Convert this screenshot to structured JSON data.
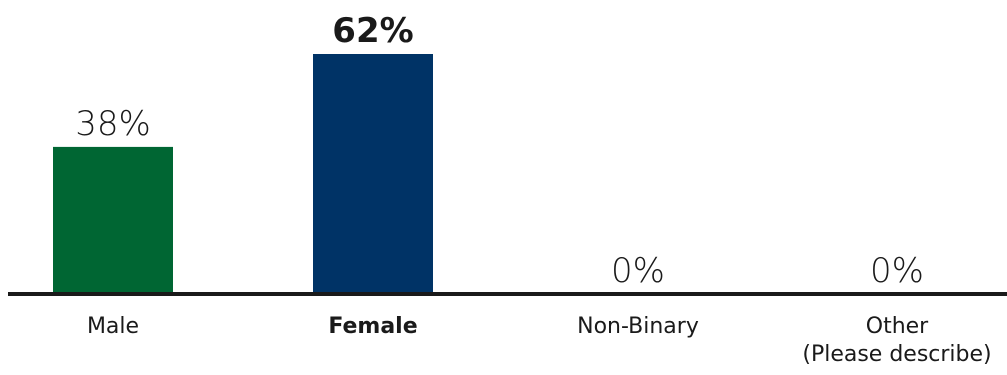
{
  "chart_data": {
    "type": "bar",
    "categories": [
      "Male",
      "Female",
      "Non-Binary",
      "Other\n(Please describe)"
    ],
    "values": [
      38,
      62,
      0,
      0
    ],
    "value_labels": [
      "38%",
      "62%",
      "0%",
      "0%"
    ],
    "emphasized": [
      false,
      true,
      false,
      false
    ],
    "colors": [
      "#006633",
      "#003366",
      "#003366",
      "#003366"
    ],
    "baseline_color": "#1a1a1a",
    "ylim": [
      0,
      62
    ],
    "title": "",
    "xlabel": "",
    "ylabel": "",
    "grid": false,
    "legend": "none"
  }
}
